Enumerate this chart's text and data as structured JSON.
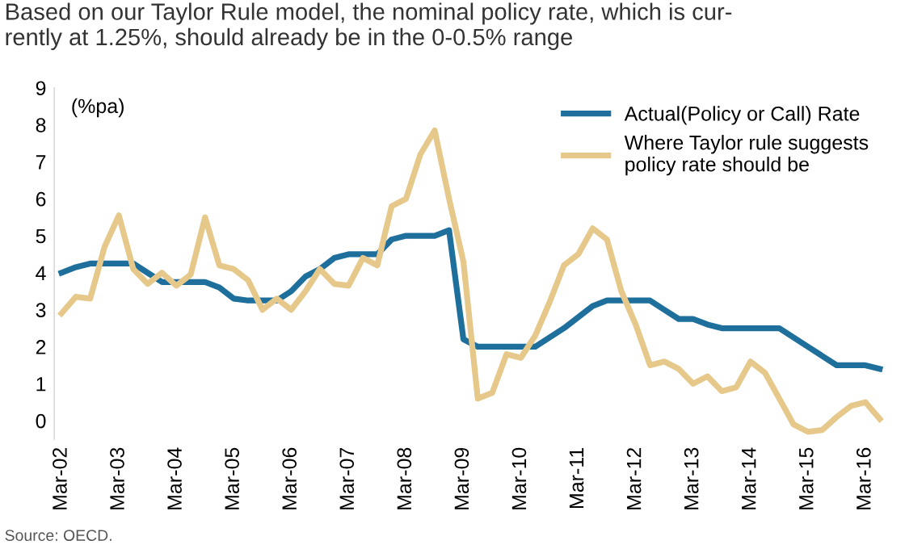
{
  "chart_data": {
    "type": "line",
    "title": "Based on our Taylor Rule model, the nominal policy rate, which is cur-\nrently at 1.25%, should already be in the 0-0.5% range",
    "ylabel": "(%pa)",
    "categories": [
      "Mar-02",
      null,
      null,
      null,
      "Mar-03",
      null,
      null,
      null,
      "Mar-04",
      null,
      null,
      null,
      "Mar-05",
      null,
      null,
      null,
      "Mar-06",
      null,
      null,
      null,
      "Mar-07",
      null,
      null,
      null,
      "Mar-08",
      null,
      null,
      null,
      "Mar-09",
      null,
      null,
      null,
      "Mar-10",
      null,
      null,
      null,
      "Mar-11",
      null,
      null,
      null,
      "Mar-12",
      null,
      null,
      null,
      "Mar-13",
      null,
      null,
      null,
      "Mar-14",
      null,
      null,
      null,
      "Mar-15",
      null,
      null,
      null,
      "Mar-16",
      null
    ],
    "series": [
      {
        "name": "Actual(Policy or Call) Rate",
        "color": "#1f6f9c",
        "values": [
          4.0,
          4.15,
          4.25,
          4.25,
          4.25,
          4.25,
          4.0,
          3.75,
          3.75,
          3.75,
          3.75,
          3.6,
          3.3,
          3.25,
          3.25,
          3.25,
          3.5,
          3.9,
          4.1,
          4.4,
          4.5,
          4.5,
          4.5,
          4.9,
          5.0,
          5.0,
          5.0,
          5.15,
          2.2,
          2.0,
          2.0,
          2.0,
          2.0,
          2.0,
          2.25,
          2.5,
          2.8,
          3.1,
          3.25,
          3.25,
          3.25,
          3.25,
          3.0,
          2.75,
          2.75,
          2.6,
          2.5,
          2.5,
          2.5,
          2.5,
          2.5,
          2.25,
          2.0,
          1.75,
          1.5,
          1.5,
          1.5,
          1.4
        ]
      },
      {
        "name": "Where Taylor rule suggests\npolicy rate should be",
        "color": "#e6c98a",
        "values": [
          2.9,
          3.35,
          3.3,
          4.7,
          5.55,
          4.1,
          3.7,
          4.0,
          3.65,
          3.95,
          5.5,
          4.2,
          4.1,
          3.8,
          3.0,
          3.3,
          3.0,
          3.5,
          4.1,
          3.7,
          3.65,
          4.4,
          4.2,
          5.8,
          6.0,
          7.2,
          7.85,
          6.0,
          4.3,
          0.6,
          0.75,
          1.8,
          1.7,
          2.3,
          3.2,
          4.2,
          4.5,
          5.2,
          4.9,
          3.5,
          2.6,
          1.5,
          1.6,
          1.4,
          1.0,
          1.2,
          0.8,
          0.9,
          1.6,
          1.3,
          0.6,
          -0.1,
          -0.3,
          -0.25,
          0.1,
          0.4,
          0.5,
          0.05
        ]
      }
    ],
    "ylim": [
      -0.5,
      9
    ],
    "yticks": [
      0,
      1,
      2,
      3,
      4,
      5,
      6,
      7,
      8,
      9
    ],
    "grid": false,
    "legend": "top right",
    "marker": "none",
    "line_style": "solid",
    "annotations": [
      "Source: OECD."
    ]
  }
}
